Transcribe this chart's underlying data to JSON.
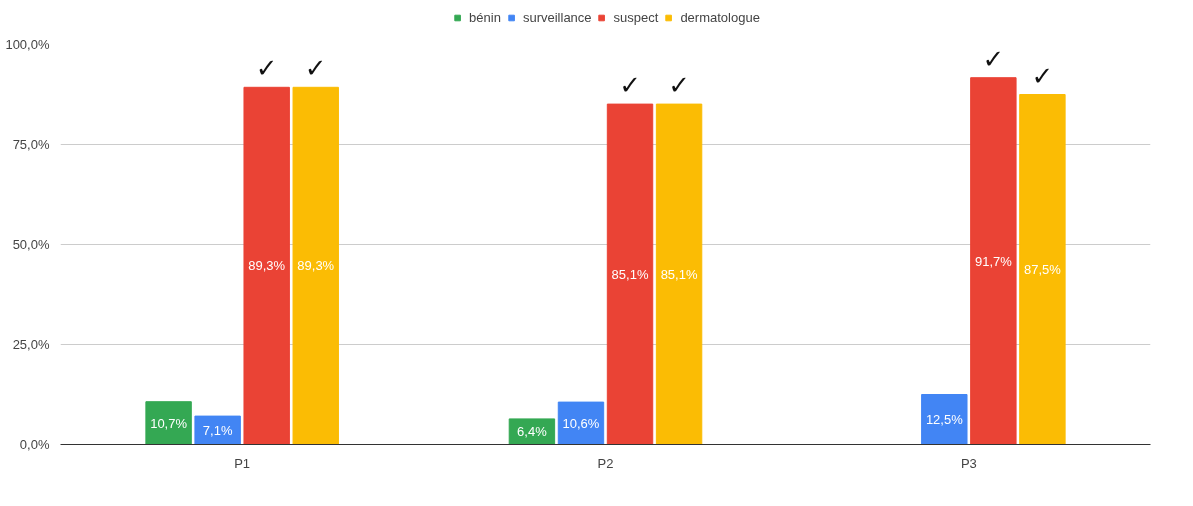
{
  "chart_data": {
    "type": "bar",
    "categories": [
      "P1",
      "P2",
      "P3"
    ],
    "series": [
      {
        "name": "bénin",
        "color": "#34a853",
        "values": [
          10.7,
          6.4,
          null
        ],
        "value_labels": [
          "10,7%",
          "6,4%",
          null
        ]
      },
      {
        "name": "surveillance",
        "color": "#4285f4",
        "values": [
          7.1,
          10.6,
          12.5
        ],
        "value_labels": [
          "7,1%",
          "10,6%",
          "12,5%"
        ]
      },
      {
        "name": "suspect",
        "color": "#ea4335",
        "values": [
          89.3,
          85.1,
          91.7
        ],
        "value_labels": [
          "89,3%",
          "85,1%",
          "91,7%"
        ]
      },
      {
        "name": "dermatologue",
        "color": "#fbbc04",
        "values": [
          89.3,
          85.1,
          87.5
        ],
        "value_labels": [
          "89,3%",
          "85,1%",
          "87,5%"
        ]
      }
    ],
    "ylim": [
      0,
      100
    ],
    "yticks": [
      {
        "value": 0,
        "label": "0,0%"
      },
      {
        "value": 25,
        "label": "25,0%"
      },
      {
        "value": 50,
        "label": "50,0%"
      },
      {
        "value": 75,
        "label": "75,0%"
      },
      {
        "value": 100,
        "label": "100,0%"
      }
    ],
    "annotations": [
      {
        "text": "✓",
        "x": "P1",
        "y": 89.3
      },
      {
        "text": "✓",
        "x": "P1",
        "y": 89.3
      },
      {
        "text": "✓",
        "x": "P2",
        "y": 85.1
      },
      {
        "text": "✓",
        "x": "P2",
        "y": 85.1
      },
      {
        "text": "✓",
        "x": "P3",
        "y": 91.7
      },
      {
        "text": "✓",
        "x": "P3",
        "y": 87.5
      }
    ],
    "grid": "y",
    "legend": "top"
  }
}
